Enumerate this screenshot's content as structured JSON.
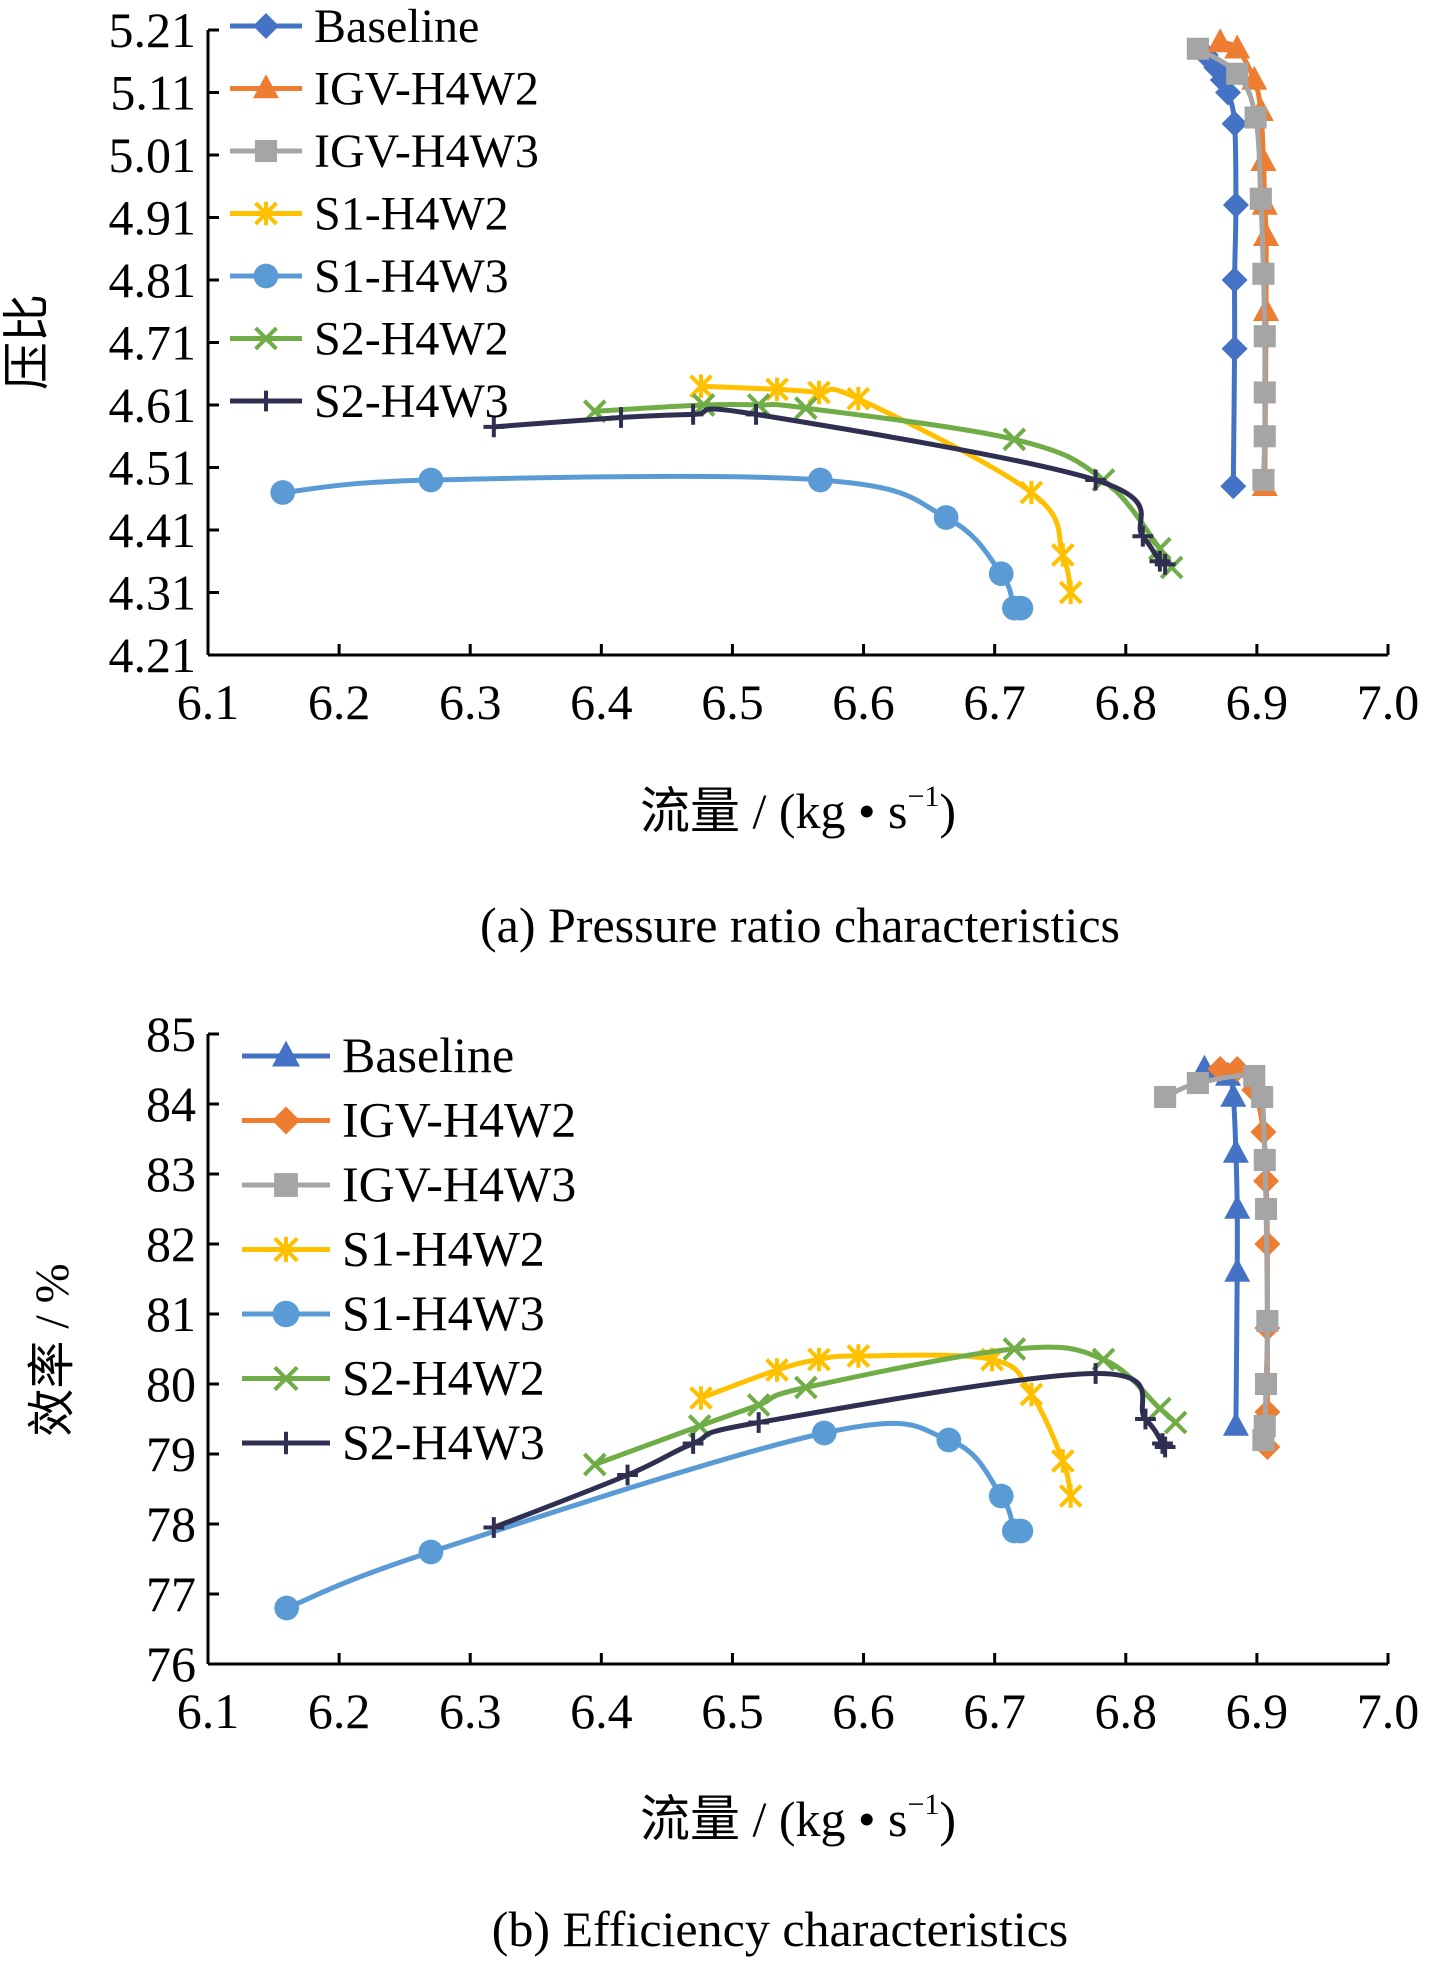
{
  "chart_data": [
    {
      "type": "line",
      "caption": "(a) Pressure ratio characteristics",
      "xlabel": "流量 / (kg • s",
      "xlabel_sup": "−1",
      "xlabel_close": ")",
      "ylabel": "压比",
      "xlim": [
        6.1,
        7.0
      ],
      "ylim": [
        4.21,
        5.21
      ],
      "xticks": [
        "6.1",
        "6.2",
        "6.3",
        "6.4",
        "6.5",
        "6.6",
        "6.7",
        "6.8",
        "6.9",
        "7.0"
      ],
      "yticks": [
        "4.21",
        "4.31",
        "4.41",
        "4.51",
        "4.61",
        "4.71",
        "4.81",
        "4.91",
        "5.01",
        "5.11",
        "5.21"
      ],
      "grid": false,
      "legend_position": "top-left",
      "series": [
        {
          "name": "Baseline",
          "color": "#4472c4",
          "marker": "diamond",
          "x": [
            6.882,
            6.883,
            6.883,
            6.884,
            6.883,
            6.878,
            6.874,
            6.869,
            6.861
          ],
          "y": [
            4.48,
            4.7,
            4.81,
            4.93,
            5.06,
            5.11,
            5.13,
            5.15,
            5.17
          ]
        },
        {
          "name": "IGV-H4W2",
          "color": "#ed7d31",
          "marker": "triangle",
          "x": [
            6.906,
            6.907,
            6.907,
            6.906,
            6.905,
            6.903,
            6.898,
            6.885,
            6.872
          ],
          "y": [
            4.48,
            4.76,
            4.88,
            4.93,
            5.0,
            5.08,
            5.13,
            5.18,
            5.19
          ]
        },
        {
          "name": "IGV-H4W3",
          "color": "#a5a5a5",
          "marker": "square",
          "x": [
            6.905,
            6.906,
            6.906,
            6.906,
            6.905,
            6.903,
            6.899,
            6.885,
            6.855
          ],
          "y": [
            4.49,
            4.56,
            4.63,
            4.72,
            4.82,
            4.94,
            5.07,
            5.14,
            5.18
          ]
        },
        {
          "name": "S1-H4W2",
          "color": "#ffc000",
          "marker": "x-star",
          "x": [
            6.476,
            6.534,
            6.566,
            6.596,
            6.728,
            6.752,
            6.758
          ],
          "y": [
            4.64,
            4.635,
            4.63,
            4.62,
            4.47,
            4.37,
            4.31
          ]
        },
        {
          "name": "S1-H4W3",
          "color": "#5b9bd5",
          "marker": "circle",
          "x": [
            6.157,
            6.27,
            6.567,
            6.663,
            6.705,
            6.715,
            6.72
          ],
          "y": [
            4.47,
            4.49,
            4.49,
            4.43,
            4.34,
            4.285,
            4.285
          ]
        },
        {
          "name": "S2-H4W2",
          "color": "#70ad47",
          "marker": "x",
          "x": [
            6.395,
            6.478,
            6.52,
            6.556,
            6.715,
            6.783,
            6.826,
            6.835
          ],
          "y": [
            4.6,
            4.61,
            4.61,
            4.605,
            4.555,
            4.49,
            4.38,
            4.35
          ]
        },
        {
          "name": "S2-H4W3",
          "color": "#2f2f52",
          "marker": "plus",
          "x": [
            6.318,
            6.415,
            6.47,
            6.518,
            6.777,
            6.813,
            6.826,
            6.83
          ],
          "y": [
            4.575,
            4.59,
            4.595,
            4.595,
            4.49,
            4.4,
            4.36,
            4.355
          ]
        }
      ]
    },
    {
      "type": "line",
      "caption": "(b) Efficiency characteristics",
      "xlabel": "流量 / (kg • s",
      "xlabel_sup": "−1",
      "xlabel_close": ")",
      "ylabel": "效率 / %",
      "xlim": [
        6.1,
        7.0
      ],
      "ylim": [
        76,
        85
      ],
      "xticks": [
        "6.1",
        "6.2",
        "6.3",
        "6.4",
        "6.5",
        "6.6",
        "6.7",
        "6.8",
        "6.9",
        "7.0"
      ],
      "yticks": [
        "76",
        "77",
        "78",
        "79",
        "80",
        "81",
        "82",
        "83",
        "84",
        "85"
      ],
      "grid": false,
      "legend_position": "top-left",
      "series": [
        {
          "name": "Baseline",
          "color": "#4472c4",
          "marker": "triangle",
          "x": [
            6.884,
            6.885,
            6.885,
            6.884,
            6.882,
            6.878,
            6.86
          ],
          "y": [
            79.4,
            81.6,
            82.5,
            83.3,
            84.1,
            84.4,
            84.5
          ]
        },
        {
          "name": "IGV-H4W2",
          "color": "#ed7d31",
          "marker": "diamond",
          "x": [
            6.908,
            6.908,
            6.908,
            6.908,
            6.907,
            6.905,
            6.898,
            6.885,
            6.872
          ],
          "y": [
            79.1,
            79.6,
            80.8,
            82.0,
            82.9,
            83.6,
            84.2,
            84.5,
            84.5
          ]
        },
        {
          "name": "IGV-H4W3",
          "color": "#a5a5a5",
          "marker": "square",
          "x": [
            6.905,
            6.906,
            6.907,
            6.908,
            6.907,
            6.906,
            6.904,
            6.898,
            6.855,
            6.83
          ],
          "y": [
            79.2,
            79.4,
            80.0,
            80.9,
            82.5,
            83.2,
            84.1,
            84.4,
            84.3,
            84.1
          ]
        },
        {
          "name": "S1-H4W2",
          "color": "#ffc000",
          "marker": "x-star",
          "x": [
            6.476,
            6.534,
            6.566,
            6.596,
            6.698,
            6.728,
            6.752,
            6.758
          ],
          "y": [
            79.8,
            80.2,
            80.35,
            80.4,
            80.35,
            79.85,
            78.9,
            78.4
          ]
        },
        {
          "name": "S1-H4W3",
          "color": "#5b9bd5",
          "marker": "circle",
          "x": [
            6.16,
            6.27,
            6.57,
            6.665,
            6.705,
            6.715,
            6.72
          ],
          "y": [
            76.8,
            77.6,
            79.3,
            79.2,
            78.4,
            77.9,
            77.9
          ]
        },
        {
          "name": "S2-H4W2",
          "color": "#70ad47",
          "marker": "x",
          "x": [
            6.395,
            6.475,
            6.52,
            6.556,
            6.715,
            6.783,
            6.826,
            6.838
          ],
          "y": [
            78.85,
            79.4,
            79.7,
            79.95,
            80.5,
            80.35,
            79.65,
            79.45
          ]
        },
        {
          "name": "S2-H4W3",
          "color": "#2f2f52",
          "marker": "plus",
          "x": [
            6.318,
            6.42,
            6.47,
            6.52,
            6.777,
            6.815,
            6.828,
            6.83
          ],
          "y": [
            77.95,
            78.7,
            79.15,
            79.45,
            80.15,
            79.5,
            79.15,
            79.1
          ]
        }
      ]
    }
  ]
}
